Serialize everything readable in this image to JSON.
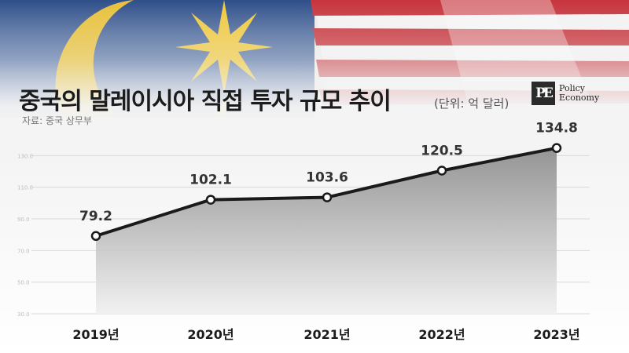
{
  "header": {
    "title": "중국의 말레이시아 직접 투자 규모 추이",
    "unit": "(단위: 억 달러)",
    "source": "자료: 중국 상무부"
  },
  "logo": {
    "mark": "PE",
    "line1": "Policy",
    "line2": "Economy"
  },
  "colors": {
    "line": "#1a1a1a",
    "area_top": "#8a8a8a",
    "area_bottom": "#f0f0f0",
    "grid": "#d9d9d9"
  },
  "chart_data": {
    "type": "area",
    "categories": [
      "2019년",
      "2020년",
      "2021년",
      "2022년",
      "2023년"
    ],
    "values": [
      79.2,
      102.1,
      103.6,
      120.5,
      134.8
    ],
    "data_labels": [
      "79.2",
      "102.1",
      "103.6",
      "120.5",
      "134.8"
    ],
    "yticks": [
      30.0,
      50.0,
      70.0,
      90.0,
      110.0,
      130.0
    ],
    "ytick_labels": [
      "30.0",
      "50.0",
      "70.0",
      "90.0",
      "110.0",
      "130.0"
    ],
    "ylim": [
      30,
      150
    ],
    "grid": true,
    "legend": "none"
  }
}
